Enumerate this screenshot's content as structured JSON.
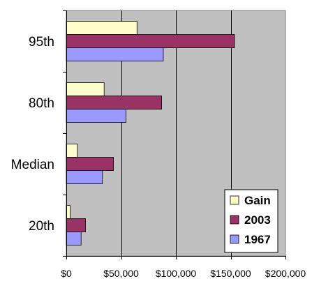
{
  "chart_data": {
    "type": "bar",
    "orientation": "horizontal",
    "title": "",
    "xlabel": "",
    "ylabel": "",
    "categories": [
      "20th",
      "Median",
      "80th",
      "95th"
    ],
    "series": [
      {
        "name": "Gain",
        "color": "#ffffcc",
        "values": [
          3500,
          10000,
          34500,
          64500
        ]
      },
      {
        "name": "2003",
        "color": "#993366",
        "values": [
          17500,
          43000,
          87000,
          153500
        ]
      },
      {
        "name": "1967",
        "color": "#9999ff",
        "values": [
          13500,
          33000,
          54500,
          88500
        ]
      }
    ],
    "xlim": [
      0,
      200000
    ],
    "xticks": [
      0,
      50000,
      100000,
      150000,
      200000
    ],
    "xtick_labels": [
      "$0",
      "$50,000",
      "$100,000",
      "$150,000",
      "$200,000"
    ],
    "grid": "vertical major gridlines",
    "plot_background": "#c0c0c0",
    "legend_position": "bottom-right"
  }
}
